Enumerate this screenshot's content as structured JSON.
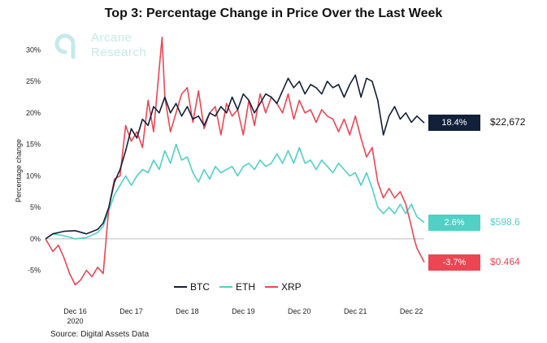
{
  "chart_data": {
    "type": "line",
    "title": "Top 3: Percentage Change in Price Over the Last Week",
    "ylabel": "Percentage change",
    "source": "Source: Digital Assets Data",
    "logo": [
      "Arcane",
      "Research"
    ],
    "x_ticks": [
      "Dec 16",
      "Dec 17",
      "Dec 18",
      "Dec 19",
      "Dec 20",
      "Dec 21",
      "Dec 22"
    ],
    "x_tick_positions": [
      0,
      1,
      2,
      3,
      4,
      5,
      6
    ],
    "x_sublabel": "2020",
    "y_ticks": [
      "-5%",
      "0%",
      "5%",
      "10%",
      "15%",
      "20%",
      "25%",
      "30%"
    ],
    "y_tick_values": [
      -5,
      0,
      5,
      10,
      15,
      20,
      25,
      30
    ],
    "xlim": [
      -0.53,
      6.23
    ],
    "ylim": [
      -7.5,
      32.5
    ],
    "zero_line": true,
    "legend_position": "bottom-center",
    "series": [
      {
        "name": "BTC",
        "color": "#13203a",
        "end_label": "18.4%",
        "end_price": "$22,672",
        "x": [
          -0.53,
          -0.4,
          -0.2,
          0.0,
          0.2,
          0.4,
          0.5,
          0.6,
          0.7,
          0.8,
          0.9,
          1.0,
          1.1,
          1.2,
          1.3,
          1.4,
          1.5,
          1.6,
          1.7,
          1.8,
          1.9,
          2.0,
          2.1,
          2.2,
          2.3,
          2.4,
          2.5,
          2.6,
          2.7,
          2.8,
          2.9,
          3.0,
          3.1,
          3.2,
          3.3,
          3.4,
          3.5,
          3.6,
          3.7,
          3.8,
          3.9,
          4.0,
          4.1,
          4.2,
          4.3,
          4.4,
          4.5,
          4.6,
          4.7,
          4.8,
          4.9,
          5.0,
          5.1,
          5.2,
          5.3,
          5.4,
          5.5,
          5.6,
          5.7,
          5.8,
          5.9,
          6.0,
          6.1,
          6.23
        ],
        "y": [
          0.0,
          0.8,
          1.2,
          1.3,
          0.8,
          1.5,
          2.5,
          5.0,
          9.0,
          11.0,
          14.0,
          17.5,
          16.0,
          19.0,
          18.0,
          21.0,
          20.0,
          22.5,
          20.0,
          21.5,
          19.5,
          21.0,
          19.0,
          19.5,
          18.0,
          20.0,
          19.5,
          21.0,
          20.0,
          22.5,
          20.5,
          23.0,
          22.0,
          20.0,
          21.5,
          23.0,
          22.5,
          21.5,
          23.5,
          25.5,
          24.0,
          25.0,
          23.0,
          24.5,
          24.0,
          23.0,
          25.0,
          24.0,
          24.5,
          22.5,
          24.5,
          26.0,
          22.5,
          25.5,
          25.0,
          22.0,
          16.5,
          19.5,
          21.0,
          19.0,
          20.0,
          18.5,
          19.5,
          18.4
        ]
      },
      {
        "name": "ETH",
        "color": "#4fd1c5",
        "end_label": "2.6%",
        "end_price": "$598.6",
        "x": [
          -0.53,
          -0.4,
          -0.2,
          0.0,
          0.2,
          0.4,
          0.5,
          0.6,
          0.7,
          0.8,
          0.9,
          1.0,
          1.1,
          1.2,
          1.3,
          1.4,
          1.5,
          1.6,
          1.7,
          1.8,
          1.9,
          2.0,
          2.1,
          2.2,
          2.3,
          2.4,
          2.5,
          2.6,
          2.7,
          2.8,
          2.9,
          3.0,
          3.1,
          3.2,
          3.3,
          3.4,
          3.5,
          3.6,
          3.7,
          3.8,
          3.9,
          4.0,
          4.1,
          4.2,
          4.3,
          4.4,
          4.5,
          4.6,
          4.7,
          4.8,
          4.9,
          5.0,
          5.1,
          5.2,
          5.3,
          5.4,
          5.5,
          5.6,
          5.7,
          5.8,
          5.9,
          6.0,
          6.1,
          6.23
        ],
        "y": [
          0.0,
          0.8,
          0.5,
          0.0,
          0.2,
          1.0,
          2.0,
          4.5,
          7.0,
          8.5,
          10.0,
          8.5,
          10.0,
          11.0,
          10.5,
          12.5,
          11.0,
          14.0,
          12.0,
          15.0,
          12.5,
          13.0,
          10.5,
          9.0,
          11.0,
          9.5,
          11.5,
          10.5,
          11.0,
          11.5,
          10.0,
          11.5,
          12.0,
          11.0,
          12.5,
          11.5,
          12.0,
          13.5,
          12.0,
          14.0,
          12.0,
          14.5,
          12.0,
          12.5,
          11.0,
          12.5,
          11.5,
          10.5,
          12.0,
          11.0,
          10.0,
          10.5,
          8.5,
          10.5,
          8.0,
          5.0,
          4.0,
          5.0,
          4.0,
          5.5,
          4.0,
          5.5,
          3.5,
          2.6
        ]
      },
      {
        "name": "XRP",
        "color": "#ec4652",
        "end_label": "-3.7%",
        "end_price": "$0.464",
        "x": [
          -0.53,
          -0.4,
          -0.3,
          -0.2,
          -0.1,
          0.0,
          0.1,
          0.2,
          0.3,
          0.4,
          0.5,
          0.6,
          0.7,
          0.8,
          0.9,
          1.0,
          1.1,
          1.2,
          1.3,
          1.4,
          1.5,
          1.55,
          1.6,
          1.7,
          1.8,
          1.9,
          2.0,
          2.1,
          2.2,
          2.3,
          2.4,
          2.5,
          2.6,
          2.7,
          2.8,
          2.9,
          3.0,
          3.1,
          3.2,
          3.3,
          3.4,
          3.5,
          3.6,
          3.7,
          3.8,
          3.9,
          4.0,
          4.1,
          4.2,
          4.3,
          4.4,
          4.5,
          4.6,
          4.7,
          4.8,
          4.9,
          5.0,
          5.1,
          5.2,
          5.3,
          5.4,
          5.5,
          5.6,
          5.7,
          5.8,
          5.9,
          6.0,
          6.05,
          6.1,
          6.23
        ],
        "y": [
          0.0,
          -2.0,
          -1.0,
          -3.0,
          -5.5,
          -7.3,
          -6.5,
          -5.0,
          -6.0,
          -4.5,
          -5.5,
          5.0,
          9.5,
          10.0,
          18.0,
          15.5,
          17.0,
          14.5,
          22.0,
          17.0,
          27.0,
          32.0,
          22.5,
          17.0,
          20.0,
          23.0,
          24.0,
          18.5,
          23.5,
          17.5,
          20.0,
          21.0,
          16.5,
          21.5,
          19.5,
          20.5,
          16.5,
          22.0,
          18.0,
          23.0,
          20.0,
          22.5,
          21.5,
          20.0,
          23.0,
          19.0,
          22.0,
          20.0,
          20.5,
          18.5,
          20.5,
          19.5,
          19.0,
          17.0,
          19.0,
          16.5,
          19.5,
          16.0,
          13.0,
          14.5,
          9.0,
          6.5,
          8.0,
          6.5,
          7.5,
          5.5,
          2.0,
          0.0,
          -1.5,
          -3.7
        ]
      }
    ]
  }
}
